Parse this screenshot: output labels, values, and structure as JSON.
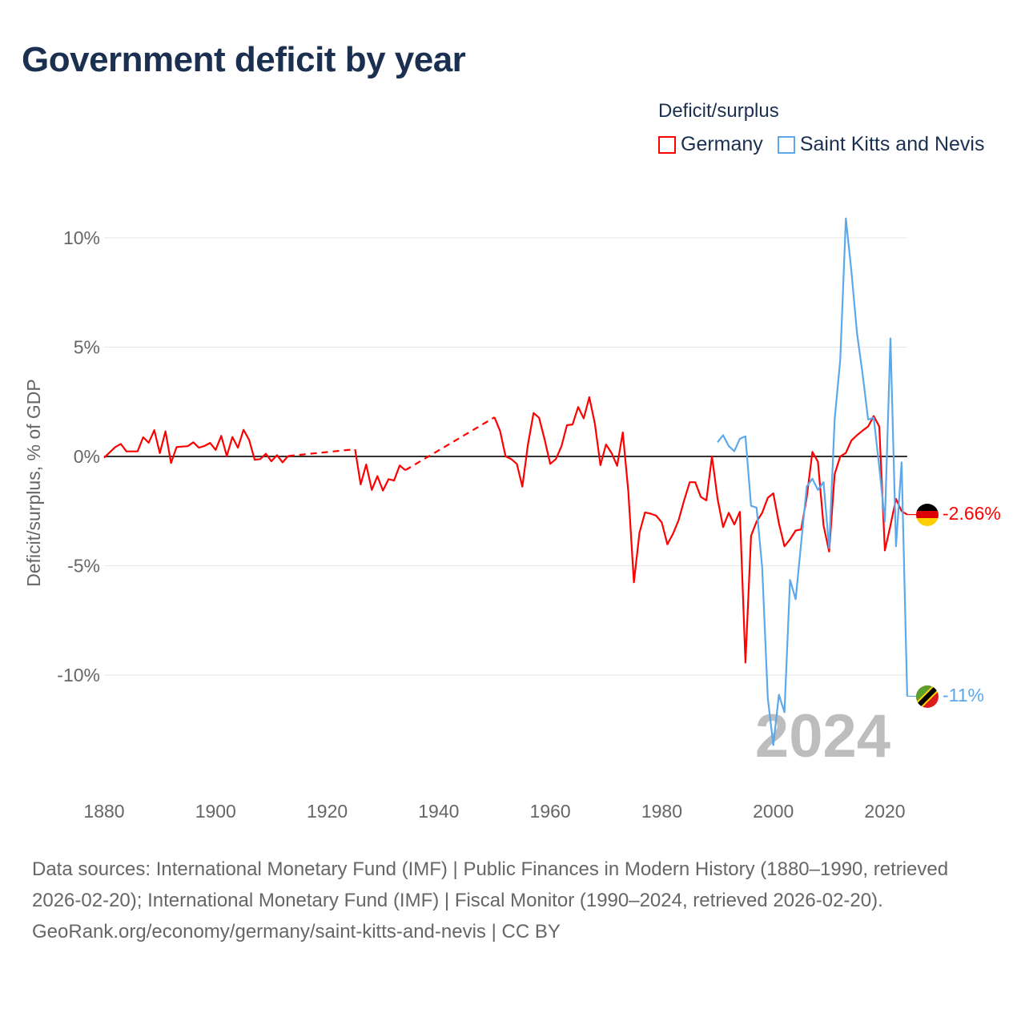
{
  "title": "Government deficit by year",
  "legend": {
    "title": "Deficit/surplus",
    "items": [
      {
        "name": "Germany",
        "color": "#ff0000"
      },
      {
        "name": "Saint Kitts and Nevis",
        "color": "#5ba8ea"
      }
    ]
  },
  "year_watermark": "2024",
  "footer": {
    "sources": "Data sources: International Monetary Fund (IMF) | Public Finances in Modern History (1880–1990, retrieved 2026-02-20); International Monetary Fund (IMF) | Fiscal Monitor (1990–2024, retrieved 2026-02-20).",
    "credit": "GeoRank.org/economy/germany/saint-kitts-and-nevis | CC BY"
  },
  "chart_data": {
    "type": "line",
    "title": "Government deficit by year",
    "xlabel": "",
    "ylabel": "Deficit/surplus, % of GDP",
    "xlim": [
      1880,
      2024
    ],
    "ylim": [
      -14,
      11
    ],
    "x_ticks": [
      1880,
      1900,
      1920,
      1940,
      1960,
      1980,
      2000,
      2020
    ],
    "x_tick_labels": [
      "1880",
      "1900",
      "1920",
      "1940",
      "1960",
      "1980",
      "2000",
      "2020"
    ],
    "y_ticks": [
      10,
      5,
      0,
      -5,
      -10
    ],
    "y_tick_labels": [
      "10%",
      "5%",
      "0%",
      "-5%",
      "-10%"
    ],
    "grid": true,
    "legend_position": "top-right",
    "end_labels": [
      "-2.66%",
      "-11%"
    ],
    "series": [
      {
        "name": "Germany",
        "color": "#ff0000",
        "points": [
          [
            1880,
            -0.06
          ],
          [
            1882,
            0.43
          ],
          [
            1883,
            0.57
          ],
          [
            1884,
            0.23
          ],
          [
            1885,
            0.23
          ],
          [
            1886,
            0.23
          ],
          [
            1887,
            0.88
          ],
          [
            1888,
            0.63
          ],
          [
            1889,
            1.2
          ],
          [
            1890,
            0.15
          ],
          [
            1891,
            1.15
          ],
          [
            1892,
            -0.3
          ],
          [
            1893,
            0.43
          ],
          [
            1894,
            0.45
          ],
          [
            1895,
            0.47
          ],
          [
            1896,
            0.65
          ],
          [
            1897,
            0.4
          ],
          [
            1898,
            0.48
          ],
          [
            1899,
            0.62
          ],
          [
            1900,
            0.3
          ],
          [
            1901,
            0.94
          ],
          [
            1902,
            0.02
          ],
          [
            1903,
            0.89
          ],
          [
            1904,
            0.4
          ],
          [
            1905,
            1.22
          ],
          [
            1906,
            0.76
          ],
          [
            1907,
            -0.15
          ],
          [
            1908,
            -0.12
          ],
          [
            1909,
            0.12
          ],
          [
            1910,
            -0.22
          ],
          [
            1911,
            0.06
          ],
          [
            1912,
            -0.27
          ],
          [
            1913,
            0.02
          ],
          null,
          [
            1925,
            0.33
          ],
          [
            1926,
            -1.28
          ],
          [
            1927,
            -0.37
          ],
          [
            1928,
            -1.53
          ],
          [
            1929,
            -0.9
          ],
          [
            1930,
            -1.56
          ],
          [
            1931,
            -1.04
          ],
          [
            1932,
            -1.1
          ],
          [
            1933,
            -0.41
          ],
          [
            1934,
            -0.63
          ],
          null,
          [
            1950,
            1.79
          ],
          [
            1951,
            1.16
          ],
          [
            1952,
            0
          ],
          [
            1953,
            -0.12
          ],
          [
            1954,
            -0.34
          ],
          [
            1955,
            -1.38
          ],
          [
            1956,
            0.55
          ],
          [
            1957,
            1.99
          ],
          [
            1958,
            1.77
          ],
          [
            1959,
            0.76
          ],
          [
            1960,
            -0.34
          ],
          [
            1961,
            -0.12
          ],
          [
            1962,
            0.46
          ],
          [
            1963,
            1.43
          ],
          [
            1964,
            1.46
          ],
          [
            1965,
            2.26
          ],
          [
            1966,
            1.74
          ],
          [
            1967,
            2.71
          ],
          [
            1968,
            1.49
          ],
          [
            1969,
            -0.4
          ],
          [
            1970,
            0.55
          ],
          [
            1971,
            0.15
          ],
          [
            1972,
            -0.43
          ],
          [
            1973,
            1.1
          ],
          [
            1974,
            -1.59
          ],
          [
            1975,
            -5.76
          ],
          [
            1976,
            -3.48
          ],
          [
            1977,
            -2.56
          ],
          [
            1978,
            -2.62
          ],
          [
            1979,
            -2.71
          ],
          [
            1980,
            -3.02
          ],
          [
            1981,
            -4.02
          ],
          [
            1982,
            -3.54
          ],
          [
            1983,
            -2.93
          ],
          [
            1984,
            -2.01
          ],
          [
            1985,
            -1.18
          ],
          [
            1986,
            -1.18
          ],
          [
            1987,
            -1.85
          ],
          [
            1988,
            -2.01
          ],
          [
            1989,
            0.0
          ],
          [
            1990,
            -1.94
          ],
          [
            1991,
            -3.23
          ],
          [
            1992,
            -2.58
          ],
          [
            1993,
            -3.11
          ],
          [
            1994,
            -2.53
          ],
          [
            1995,
            -9.43
          ],
          [
            1996,
            -3.63
          ],
          [
            1997,
            -2.98
          ],
          [
            1998,
            -2.58
          ],
          [
            1999,
            -1.89
          ],
          [
            2000,
            -1.69
          ],
          [
            2001,
            -3.06
          ],
          [
            2002,
            -4.11
          ],
          [
            2003,
            -3.79
          ],
          [
            2004,
            -3.39
          ],
          [
            2005,
            -3.34
          ],
          [
            2006,
            -1.85
          ],
          [
            2007,
            0.21
          ],
          [
            2008,
            -0.24
          ],
          [
            2009,
            -3.15
          ],
          [
            2010,
            -4.35
          ],
          [
            2011,
            -0.81
          ],
          [
            2012,
            0.0
          ],
          [
            2013,
            0.16
          ],
          [
            2014,
            0.73
          ],
          [
            2015,
            0.97
          ],
          [
            2016,
            1.18
          ],
          [
            2017,
            1.37
          ],
          [
            2018,
            1.85
          ],
          [
            2019,
            1.37
          ],
          [
            2020,
            -4.3
          ],
          [
            2021,
            -3.15
          ],
          [
            2022,
            -1.94
          ],
          [
            2023,
            -2.5
          ],
          [
            2024,
            -2.66
          ]
        ]
      },
      {
        "name": "Saint Kitts and Nevis",
        "color": "#5ba8ea",
        "points": [
          [
            1990,
            0.65
          ],
          [
            1991,
            0.97
          ],
          [
            1992,
            0.48
          ],
          [
            1993,
            0.24
          ],
          [
            1994,
            0.81
          ],
          [
            1995,
            0.92
          ],
          [
            1996,
            -2.26
          ],
          [
            1997,
            -2.34
          ],
          [
            1998,
            -5.08
          ],
          [
            1999,
            -11.05
          ],
          [
            2000,
            -13.2
          ],
          [
            2001,
            -10.9
          ],
          [
            2002,
            -11.7
          ],
          [
            2003,
            -5.65
          ],
          [
            2004,
            -6.53
          ],
          [
            2005,
            -3.95
          ],
          [
            2006,
            -1.37
          ],
          [
            2007,
            -1.02
          ],
          [
            2008,
            -1.53
          ],
          [
            2009,
            -1.18
          ],
          [
            2010,
            -4.19
          ],
          [
            2011,
            1.69
          ],
          [
            2012,
            4.43
          ],
          [
            2013,
            10.89
          ],
          [
            2014,
            8.47
          ],
          [
            2015,
            5.65
          ],
          [
            2016,
            3.79
          ],
          [
            2017,
            1.69
          ],
          [
            2018,
            1.77
          ],
          [
            2019,
            -0.48
          ],
          [
            2020,
            -2.98
          ],
          [
            2021,
            5.4
          ],
          [
            2022,
            -4.11
          ],
          [
            2023,
            -0.27
          ],
          [
            2024,
            -10.97
          ]
        ]
      }
    ]
  }
}
